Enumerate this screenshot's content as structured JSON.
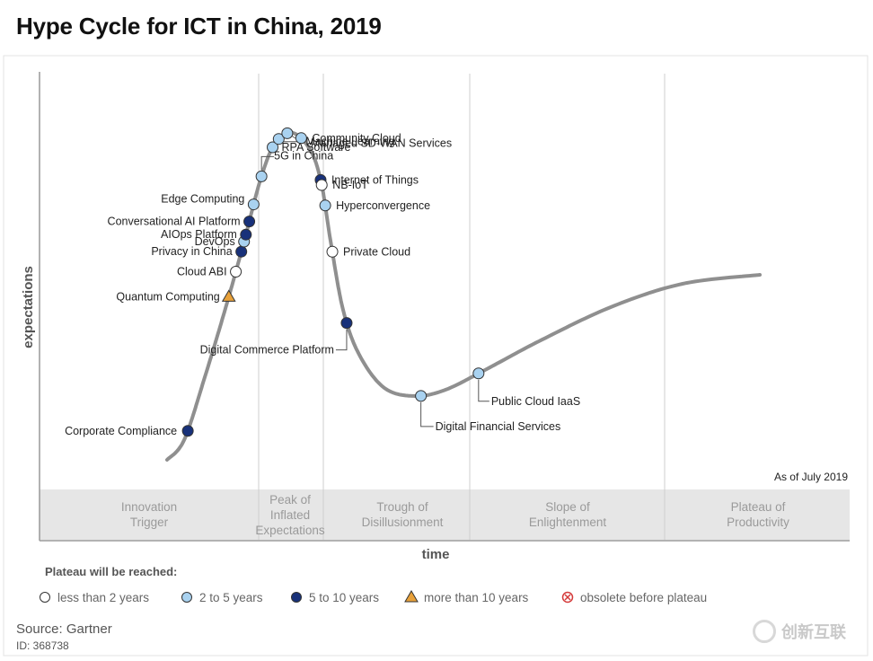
{
  "title": "Hype Cycle for ICT in China, 2019",
  "source": "Source: Gartner",
  "doc_id": "ID: 368738",
  "watermark_text": "创新互联",
  "chart_data": {
    "type": "scatter",
    "title": "Hype Cycle for ICT in China, 2019",
    "xlabel": "time",
    "ylabel": "expectations",
    "as_of": "As of July 2019",
    "phases": [
      [
        "Innovation",
        "Trigger"
      ],
      [
        "Peak of",
        "Inflated",
        "Expectations"
      ],
      [
        "Trough of",
        "Disillusionment"
      ],
      [
        "Slope of",
        "Enlightenment"
      ],
      [
        "Plateau of",
        "Productivity"
      ]
    ],
    "legend_title": "Plateau will be reached:",
    "legend": [
      {
        "key": "lt2",
        "label": "less than 2 years",
        "marker": "circle",
        "color": "#ffffff"
      },
      {
        "key": "2to5",
        "label": "2 to 5 years",
        "marker": "circle",
        "color": "#a9d2f0"
      },
      {
        "key": "5to10",
        "label": "5 to 10 years",
        "marker": "circle",
        "color": "#18317a"
      },
      {
        "key": "gt10",
        "label": "more than 10 years",
        "marker": "triangle",
        "color": "#e8a13a"
      },
      {
        "key": "obsolete",
        "label": "obsolete before plateau",
        "marker": "x-circle",
        "color": "#d43a3a"
      }
    ],
    "technologies": [
      {
        "name": "Corporate Compliance",
        "category": "5to10",
        "t": 0.035
      },
      {
        "name": "Quantum Computing",
        "category": "gt10",
        "t": 0.17
      },
      {
        "name": "Cloud ABI",
        "category": "lt2",
        "t": 0.195
      },
      {
        "name": "Privacy in China",
        "category": "5to10",
        "t": 0.215
      },
      {
        "name": "DevOps",
        "category": "2to5",
        "t": 0.225
      },
      {
        "name": "AIOps Platform",
        "category": "5to10",
        "t": 0.232
      },
      {
        "name": "Conversational AI Platform",
        "category": "5to10",
        "t": 0.245
      },
      {
        "name": "Edge Computing",
        "category": "2to5",
        "t": 0.262
      },
      {
        "name": "5G in China",
        "category": "2to5",
        "t": 0.29
      },
      {
        "name": "RPA Software",
        "category": "2to5",
        "t": 0.32
      },
      {
        "name": "Machine Learning",
        "category": "2to5",
        "t": 0.33
      },
      {
        "name": "Managed SD-WAN Services",
        "category": "2to5",
        "t": 0.34
      },
      {
        "name": "Community Cloud",
        "category": "2to5",
        "t": 0.355
      },
      {
        "name": "Internet of Things",
        "category": "5to10",
        "t": 0.4
      },
      {
        "name": "NB-IoT",
        "category": "lt2",
        "t": 0.405
      },
      {
        "name": "Hyperconvergence",
        "category": "2to5",
        "t": 0.425
      },
      {
        "name": "Private Cloud",
        "category": "lt2",
        "t": 0.47
      },
      {
        "name": "Digital Commerce Platform",
        "category": "5to10",
        "t": 0.54
      },
      {
        "name": "Digital Financial Services",
        "category": "2to5",
        "t": 0.65
      },
      {
        "name": "Public Cloud IaaS",
        "category": "2to5",
        "t": 0.71
      }
    ]
  }
}
